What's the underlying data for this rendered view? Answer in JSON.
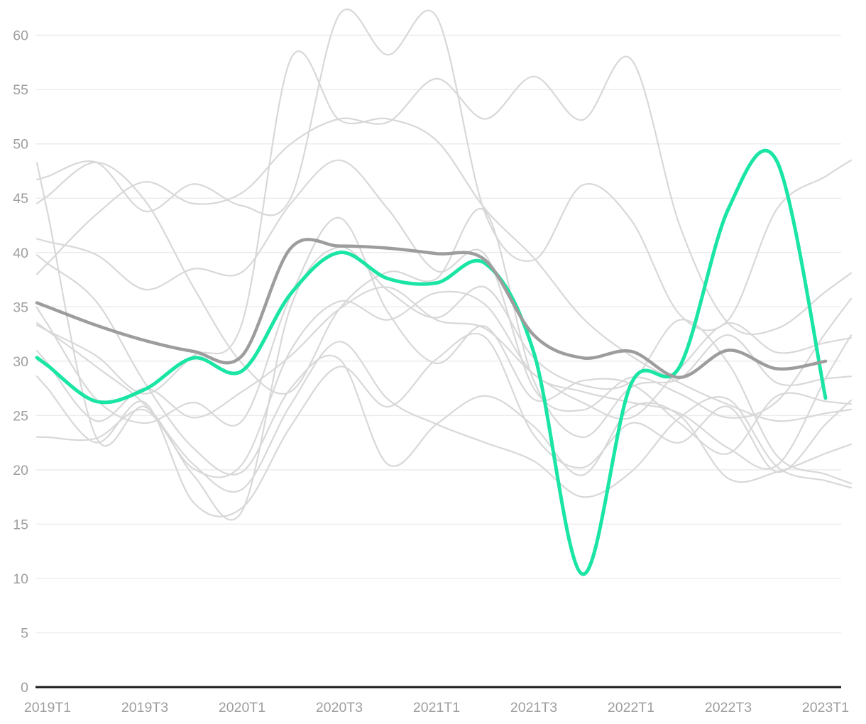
{
  "chart_data": {
    "type": "line",
    "title": "",
    "legend": "none",
    "x_axis": {
      "tick_labels": [
        "2019T1",
        "2019T3",
        "2020T1",
        "2020T3",
        "2021T1",
        "2021T3",
        "2022T1",
        "2022T3",
        "2023T1"
      ],
      "points_per_label_interval": 2,
      "total_points": 17,
      "range_description": "quarterly points from 2019T1 to 2023T1"
    },
    "y_axis": {
      "tick_labels": [
        "0",
        "5",
        "10",
        "15",
        "20",
        "25",
        "30",
        "35",
        "40",
        "45",
        "50",
        "55",
        "60"
      ],
      "min": 0,
      "max": 60,
      "grid": true
    },
    "series": [
      {
        "name": "highlighted-series",
        "role": "highlight",
        "color": "#1ae5a4",
        "stroke_width": 5,
        "values": [
          29.6,
          26.3,
          27.4,
          30.3,
          29.1,
          36.2,
          40.0,
          37.6,
          37.2,
          39.0,
          30.8,
          10.4,
          27.9,
          29.5,
          44.0,
          48.4,
          26.6
        ]
      },
      {
        "name": "average-series",
        "role": "average",
        "color": "#9d9d9d",
        "stroke_width": 4.5,
        "values": [
          35.0,
          33.3,
          31.9,
          30.9,
          30.5,
          40.4,
          40.6,
          40.4,
          39.9,
          39.3,
          32.4,
          30.3,
          30.9,
          28.5,
          31.0,
          29.3,
          30.0
        ]
      },
      {
        "name": "background-series-1",
        "role": "background",
        "color": "#d8d8d8",
        "stroke_width": 2.2,
        "values": [
          39.0,
          43.5,
          46.5,
          44.5,
          45.5,
          50.0,
          52.3,
          52.0,
          56.0,
          52.3,
          56.2,
          52.2,
          57.8,
          42.5,
          33.5,
          33.0,
          36.4
        ]
      },
      {
        "name": "background-series-2",
        "role": "background",
        "color": "#d8d8d8",
        "stroke_width": 2.2,
        "values": [
          32.8,
          30.5,
          27.0,
          30.5,
          33.5,
          57.8,
          52.2,
          52.3,
          50.3,
          44.0,
          39.5,
          34.0,
          30.5,
          28.0,
          26.0,
          24.5,
          25.2
        ]
      },
      {
        "name": "background-series-3",
        "role": "background",
        "color": "#d8d8d8",
        "stroke_width": 2.2,
        "values": [
          47.0,
          48.3,
          43.8,
          46.3,
          44.3,
          45.0,
          61.9,
          58.2,
          61.7,
          43.6,
          39.3,
          46.2,
          43.0,
          34.3,
          33.8,
          44.0,
          47.0
        ]
      },
      {
        "name": "background-series-4",
        "role": "background",
        "color": "#d8d8d8",
        "stroke_width": 2.2,
        "values": [
          45.2,
          48.3,
          44.8,
          36.8,
          29.8,
          27.2,
          34.8,
          38.2,
          37.6,
          43.8,
          28.2,
          23.0,
          27.6,
          28.4,
          32.4,
          28.0,
          28.4
        ]
      },
      {
        "name": "background-series-5",
        "role": "background",
        "color": "#d8d8d8",
        "stroke_width": 2.2,
        "values": [
          43.7,
          23.0,
          25.8,
          19.5,
          16.2,
          35.0,
          40.5,
          36.5,
          34.0,
          36.8,
          30.3,
          27.8,
          28.1,
          33.8,
          29.8,
          21.3,
          19.6
        ]
      },
      {
        "name": "background-series-6",
        "role": "background",
        "color": "#d8d8d8",
        "stroke_width": 2.2,
        "values": [
          41.0,
          39.8,
          36.6,
          38.5,
          38.2,
          44.5,
          48.5,
          44.0,
          38.3,
          39.8,
          27.5,
          25.5,
          28.5,
          27.0,
          24.8,
          26.3,
          32.6
        ]
      },
      {
        "name": "background-series-7",
        "role": "background",
        "color": "#d8d8d8",
        "stroke_width": 2.2,
        "values": [
          39.0,
          35.5,
          28.0,
          22.0,
          19.8,
          27.5,
          30.2,
          20.5,
          24.2,
          26.8,
          24.0,
          19.5,
          25.7,
          25.0,
          19.2,
          19.8,
          21.5
        ]
      },
      {
        "name": "background-series-8",
        "role": "background",
        "color": "#d8d8d8",
        "stroke_width": 2.2,
        "values": [
          33.4,
          26.5,
          24.3,
          26.2,
          24.5,
          36.0,
          43.2,
          34.5,
          29.8,
          33.2,
          26.5,
          28.2,
          27.9,
          24.3,
          21.5,
          26.8,
          26.3
        ]
      },
      {
        "name": "background-series-9",
        "role": "background",
        "color": "#d8d8d8",
        "stroke_width": 2.2,
        "values": [
          32.8,
          29.5,
          26.0,
          20.5,
          18.2,
          26.0,
          31.8,
          26.5,
          24.2,
          22.5,
          20.8,
          17.5,
          19.8,
          24.8,
          26.5,
          20.3,
          19.0
        ]
      },
      {
        "name": "background-series-10",
        "role": "background",
        "color": "#d8d8d8",
        "stroke_width": 2.2,
        "values": [
          29.8,
          24.5,
          27.5,
          24.8,
          27.2,
          30.5,
          34.8,
          36.8,
          33.8,
          33.0,
          28.8,
          26.2,
          24.8,
          29.3,
          33.5,
          30.8,
          31.7
        ]
      },
      {
        "name": "background-series-11",
        "role": "background",
        "color": "#d8d8d8",
        "stroke_width": 2.2,
        "values": [
          27.5,
          22.5,
          26.2,
          17.0,
          16.5,
          24.0,
          29.5,
          25.8,
          30.2,
          32.2,
          23.2,
          20.2,
          24.3,
          22.5,
          25.8,
          19.8,
          24.2
        ]
      },
      {
        "name": "background-series-12",
        "role": "background",
        "color": "#d8d8d8",
        "stroke_width": 2.2,
        "values": [
          23.0,
          22.9,
          25.5,
          20.1,
          20.5,
          31.0,
          35.5,
          33.8,
          36.3,
          35.2,
          28.8,
          27.2,
          26.2,
          25.2,
          22.0,
          20.4,
          28.4
        ]
      }
    ]
  },
  "colors": {
    "background": "#ffffff",
    "gridline": "#ececec",
    "axis_line": "#1a1a1a",
    "tick_label": "#9e9e9e",
    "highlight": "#1ae5a4",
    "average": "#9d9d9d",
    "background_line": "#d8d8d8"
  }
}
